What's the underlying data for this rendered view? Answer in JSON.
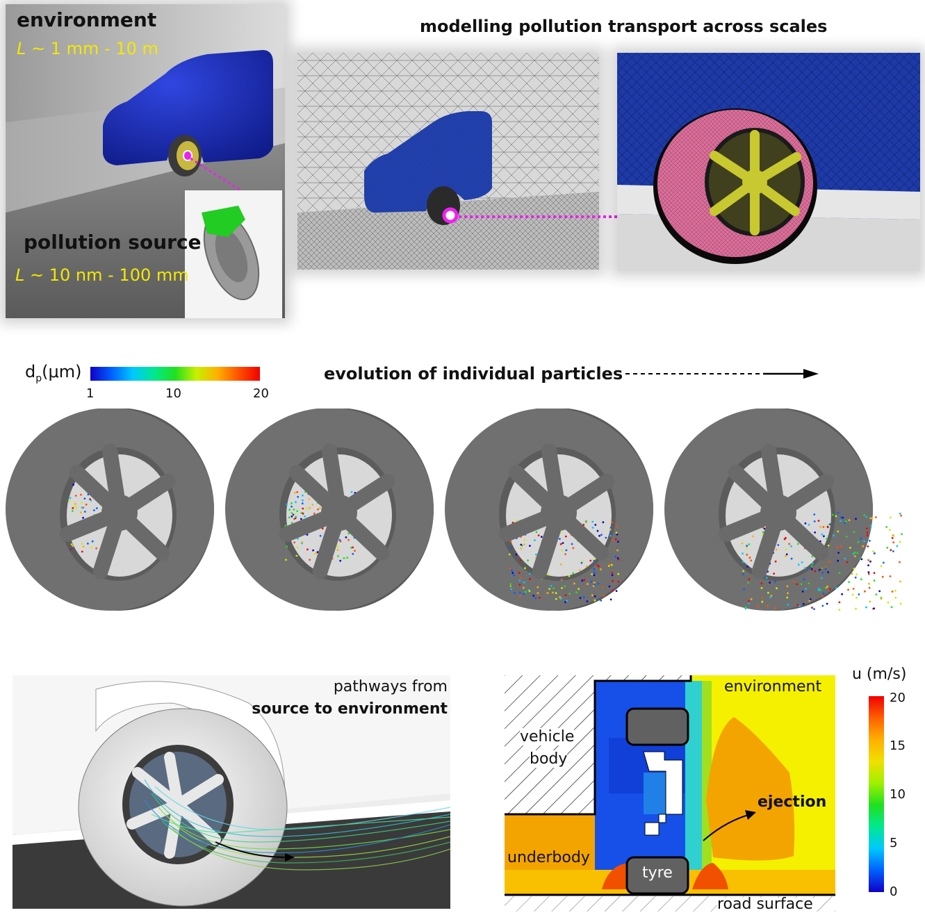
{
  "top": {
    "env_label": "environment",
    "env_scale_var": "L",
    "env_scale_range": " ~ 1 mm - 10 m",
    "source_label": "pollution source",
    "source_scale_var": "L",
    "source_scale_range": " ~ 10 nm - 100 mm",
    "title": "modelling pollution transport across scales"
  },
  "particles": {
    "colorbar_symbol": "d",
    "colorbar_subscript": "p",
    "colorbar_unit": "(μm)",
    "colorbar_ticks": [
      "1",
      "10",
      "20"
    ],
    "title": "evolution of individual particles",
    "frame_count": 4
  },
  "pathways": {
    "line1": "pathways from",
    "line2": "source to environment"
  },
  "contour": {
    "labels": {
      "environment": "environment",
      "vehicle": "vehicle",
      "body": "body",
      "ejection": "ejection",
      "underbody": "underbody",
      "tyre": "tyre",
      "road": "road surface"
    },
    "colorbar_title": "u (m/s)",
    "colorbar_ticks": [
      "20",
      "15",
      "10",
      "5",
      "0"
    ]
  },
  "colors": {
    "magenta": "#ee22ee",
    "yellow_label": "#f3e900",
    "vehicle_blue": "#1a2fbf",
    "tyre_pink": "#d9709a",
    "tyre_grey": "#6e6e6e"
  }
}
